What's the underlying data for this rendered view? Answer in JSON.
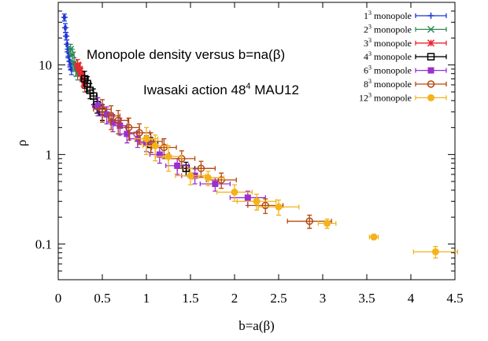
{
  "chart_data": {
    "type": "scatter",
    "title": "",
    "xlabel": "b=a(β)",
    "ylabel": "ρ",
    "xlim": [
      0,
      4.5
    ],
    "ylim": [
      0.04,
      50
    ],
    "yscale": "log",
    "grid": false,
    "legend_position": "top-right",
    "x_ticks": [
      "0",
      "0.5",
      "1",
      "1.5",
      "2",
      "2.5",
      "3",
      "3.5",
      "4",
      "4.5"
    ],
    "y_ticks": [
      "0.1",
      "1",
      "10"
    ],
    "annotations": [
      {
        "text": "Monopole density versus b=na(β)"
      },
      {
        "text": "Iwasaki action 48",
        "sup": "4",
        "tail": " MAU12"
      }
    ],
    "series": [
      {
        "name": "1",
        "sup": "3",
        "suffix": " monopole",
        "color": "#1f35d6",
        "marker": "plus",
        "x": [
          0.07,
          0.08,
          0.09,
          0.1,
          0.11,
          0.12,
          0.13,
          0.14,
          0.15
        ],
        "y": [
          34,
          26,
          21,
          17,
          14,
          12.5,
          11,
          10,
          9
        ],
        "xerr": [
          0.01,
          0.01,
          0.01,
          0.01,
          0.01,
          0.01,
          0.01,
          0.01,
          0.01
        ],
        "yerr": [
          3,
          3,
          2,
          2,
          2,
          1.5,
          1.5,
          1.2,
          1.2
        ]
      },
      {
        "name": "2",
        "sup": "3",
        "suffix": " monopole",
        "color": "#2e8b57",
        "marker": "cross",
        "x": [
          0.14,
          0.16,
          0.18,
          0.2,
          0.22
        ],
        "y": [
          15,
          13,
          10.5,
          9,
          8
        ],
        "xerr": [
          0.02,
          0.02,
          0.02,
          0.02,
          0.02
        ],
        "yerr": [
          2,
          2,
          1.5,
          1.5,
          1.2
        ]
      },
      {
        "name": "3",
        "sup": "3",
        "suffix": " monopole",
        "color": "#e8262f",
        "marker": "star",
        "x": [
          0.22,
          0.24,
          0.26,
          0.28,
          0.3
        ],
        "y": [
          10,
          9,
          8,
          7,
          6
        ],
        "xerr": [
          0.03,
          0.03,
          0.03,
          0.03,
          0.03
        ],
        "yerr": [
          1.5,
          1.5,
          1.2,
          1.2,
          1
        ]
      },
      {
        "name": "4",
        "sup": "3",
        "suffix": " monopole",
        "color": "#000000",
        "marker": "open-square",
        "x": [
          0.3,
          0.33,
          0.36,
          0.4,
          0.44,
          0.5,
          1.05,
          1.45
        ],
        "y": [
          7,
          6.2,
          5.2,
          4.5,
          3.6,
          3.0,
          1.3,
          0.7
        ],
        "xerr": [
          0.04,
          0.04,
          0.04,
          0.04,
          0.04,
          0.05,
          0.08,
          0.1
        ],
        "yerr": [
          1.5,
          1.2,
          1.0,
          0.9,
          0.7,
          0.6,
          0.25,
          0.12
        ]
      },
      {
        "name": "6",
        "sup": "3",
        "suffix": " monopole",
        "color": "#9b30d0",
        "marker": "filled-square",
        "x": [
          0.45,
          0.55,
          0.62,
          0.7,
          0.78,
          0.9,
          1.0,
          1.15,
          1.35,
          1.55,
          1.78,
          2.15
        ],
        "y": [
          3.5,
          2.8,
          2.3,
          2.1,
          1.7,
          1.5,
          1.35,
          1.0,
          0.75,
          0.58,
          0.47,
          0.33
        ],
        "xerr": [
          0.06,
          0.07,
          0.07,
          0.08,
          0.08,
          0.09,
          0.1,
          0.11,
          0.13,
          0.15,
          0.17,
          0.2
        ],
        "yerr": [
          0.8,
          0.6,
          0.5,
          0.45,
          0.35,
          0.3,
          0.27,
          0.2,
          0.15,
          0.11,
          0.08,
          0.06
        ]
      },
      {
        "name": "8",
        "sup": "3",
        "suffix": " monopole",
        "color": "#b5470e",
        "marker": "open-circle",
        "x": [
          0.5,
          0.6,
          0.68,
          0.8,
          0.92,
          1.05,
          1.2,
          1.4,
          1.62,
          1.85,
          2.35,
          2.85
        ],
        "y": [
          3.2,
          2.7,
          2.4,
          2.0,
          1.75,
          1.4,
          1.2,
          0.9,
          0.7,
          0.52,
          0.27,
          0.18
        ],
        "xerr": [
          0.1,
          0.1,
          0.11,
          0.12,
          0.12,
          0.13,
          0.14,
          0.15,
          0.16,
          0.17,
          0.2,
          0.25
        ],
        "yerr": [
          0.9,
          0.8,
          0.7,
          0.55,
          0.45,
          0.35,
          0.3,
          0.2,
          0.14,
          0.1,
          0.05,
          0.03
        ]
      },
      {
        "name": "12",
        "sup": "3",
        "suffix": " monopole",
        "color": "#f4b31a",
        "marker": "filled-circle",
        "x": [
          1.0,
          1.1,
          1.25,
          1.5,
          1.7,
          2.0,
          2.25,
          2.5,
          3.05,
          3.58,
          4.28
        ],
        "y": [
          1.5,
          1.25,
          0.95,
          0.58,
          0.55,
          0.38,
          0.3,
          0.26,
          0.17,
          0.12,
          0.082
        ],
        "xerr": [
          0.13,
          0.14,
          0.15,
          0.17,
          0.18,
          0.2,
          0.22,
          0.23,
          0.1,
          0.05,
          0.25
        ],
        "yerr": [
          0.5,
          0.4,
          0.3,
          0.12,
          0.1,
          0.08,
          0.06,
          0.05,
          0.02,
          0.008,
          0.012
        ]
      }
    ]
  }
}
